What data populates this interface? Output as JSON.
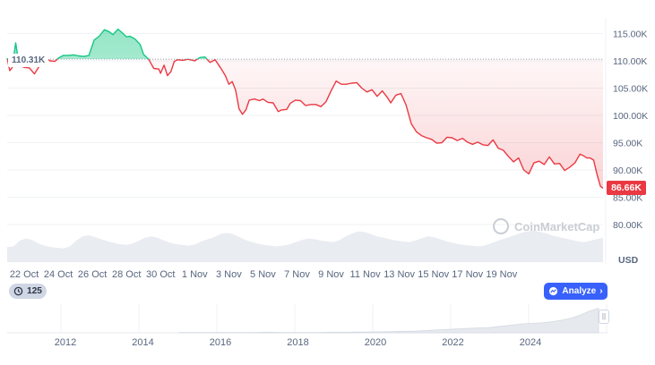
{
  "chart_data": {
    "type": "area",
    "title": "",
    "xlabel": "",
    "ylabel": "USD",
    "ylim": [
      75000,
      118000
    ],
    "y_ticks": [
      "115.00K",
      "110.00K",
      "105.00K",
      "100.00K",
      "95.00K",
      "90.00K",
      "85.00K",
      "80.00K"
    ],
    "x_ticks": [
      "22 Oct",
      "24 Oct",
      "26 Oct",
      "28 Oct",
      "30 Oct",
      "1 Nov",
      "3 Nov",
      "5 Nov",
      "7 Nov",
      "9 Nov",
      "11 Nov",
      "13 Nov",
      "15 Nov",
      "17 Nov",
      "19 Nov"
    ],
    "reference_value": 110310,
    "reference_label": "110.31K",
    "current_value": 86660,
    "current_label": "86.66K",
    "up_color": "#16c784",
    "down_color": "#ea3943",
    "grid": true,
    "series": [
      {
        "x": [
          21.0,
          21.15,
          21.3,
          21.5,
          21.7,
          22.0,
          22.3,
          22.6,
          22.9,
          23.2,
          23.5,
          23.8,
          24.0,
          24.3,
          24.6,
          24.9,
          25.2,
          25.5,
          25.8,
          26.1,
          26.4,
          26.7,
          27.0,
          27.2,
          27.5,
          27.8,
          28.0,
          28.2,
          28.5,
          28.8,
          29.0,
          29.3,
          29.6,
          29.9,
          30.0,
          30.2,
          30.4,
          30.6,
          30.8,
          31.0,
          31.3,
          31.6,
          32.0,
          32.3,
          32.6,
          32.9,
          33.2,
          33.5,
          33.8,
          34.0,
          34.2,
          34.4,
          34.6,
          34.8,
          35.0,
          35.2,
          35.5,
          35.8,
          36.0,
          36.3,
          36.6,
          36.9,
          37.1,
          37.4,
          37.6,
          37.9,
          38.2,
          38.5,
          38.8,
          39.1,
          39.4,
          39.7,
          40.0,
          40.3,
          40.6,
          40.9,
          41.2,
          41.5,
          41.8,
          42.1,
          42.4,
          42.7,
          43.0,
          43.3,
          43.5,
          43.8,
          44.1,
          44.4,
          44.7,
          45.0,
          45.3,
          45.6,
          45.9,
          46.2,
          46.5,
          46.8,
          47.1,
          47.4,
          47.7,
          48.0,
          48.3,
          48.6,
          48.9,
          49.2,
          49.5,
          49.8,
          50.1,
          50.4,
          50.7,
          51.0,
          51.3,
          51.6,
          51.9,
          52.2,
          52.5,
          52.8,
          53.1,
          53.4,
          53.7,
          54.0,
          54.3,
          54.6,
          54.8,
          55.0,
          55.2,
          55.4,
          55.6,
          55.8,
          55.95
        ],
        "values": [
          110500,
          108200,
          108800,
          113300,
          109200,
          108800,
          108700,
          107600,
          109100,
          110800,
          110000,
          109900,
          110500,
          111000,
          111000,
          111100,
          110900,
          110800,
          111000,
          113800,
          114500,
          115700,
          115300,
          114800,
          115800,
          115000,
          114400,
          114500,
          114000,
          113000,
          111200,
          110300,
          108600,
          108500,
          107700,
          109200,
          107300,
          108000,
          109900,
          110200,
          110100,
          110300,
          110000,
          110600,
          110700,
          109700,
          110200,
          108800,
          107300,
          105700,
          106200,
          104600,
          101200,
          100200,
          101000,
          102800,
          103000,
          102700,
          103000,
          102400,
          102300,
          100700,
          101000,
          101100,
          102200,
          102800,
          102700,
          101800,
          102000,
          102000,
          101600,
          102500,
          104500,
          106300,
          105700,
          105700,
          105900,
          106000,
          105000,
          104300,
          104700,
          103500,
          104500,
          103300,
          102300,
          103700,
          104000,
          101900,
          98500,
          97000,
          96300,
          95900,
          95600,
          94900,
          95000,
          96000,
          95900,
          95400,
          95800,
          95100,
          94700,
          95100,
          94600,
          94500,
          95500,
          94000,
          93600,
          92500,
          91500,
          92200,
          90000,
          89300,
          91300,
          91600,
          91000,
          92400,
          91100,
          91200,
          89900,
          90500,
          91300,
          92900,
          92600,
          92200,
          92200,
          91800,
          89200,
          87000,
          86660
        ]
      }
    ],
    "volume": [
      42,
      44,
      60,
      66,
      62,
      52,
      46,
      42,
      40,
      38,
      44,
      60,
      72,
      75,
      70,
      64,
      58,
      54,
      50,
      48,
      52,
      60,
      68,
      72,
      68,
      60,
      54,
      50,
      48,
      46,
      50,
      58,
      64,
      70,
      78,
      82,
      78,
      70,
      62,
      56,
      52,
      48,
      46,
      44,
      46,
      50,
      56,
      62,
      66,
      64,
      60,
      58,
      56,
      62,
      72,
      80,
      86,
      84,
      78,
      72,
      68,
      64,
      60,
      58,
      56,
      60,
      66,
      72,
      70,
      64,
      58,
      54,
      50,
      48,
      46,
      44,
      46,
      52,
      58,
      64,
      70,
      76,
      82,
      86,
      88,
      84,
      80,
      74,
      70,
      66,
      62,
      58,
      56,
      60,
      64,
      68
    ],
    "navigator": {
      "x_ticks": [
        "2012",
        "2014",
        "2016",
        "2018",
        "2020",
        "2022",
        "2024"
      ],
      "range_label": "125",
      "action_label": "Analyze",
      "values": [
        1,
        1,
        1,
        1,
        1,
        1,
        1,
        1,
        1,
        2,
        2,
        1,
        1,
        1,
        1,
        1,
        2,
        2,
        2,
        3,
        3,
        4,
        4,
        5,
        6,
        6,
        8,
        10,
        12,
        14,
        16,
        18,
        19,
        20,
        24,
        28,
        32,
        36,
        38,
        40,
        44,
        50,
        58,
        70,
        86,
        98
      ]
    },
    "watermark": "CoinMarketCap"
  }
}
